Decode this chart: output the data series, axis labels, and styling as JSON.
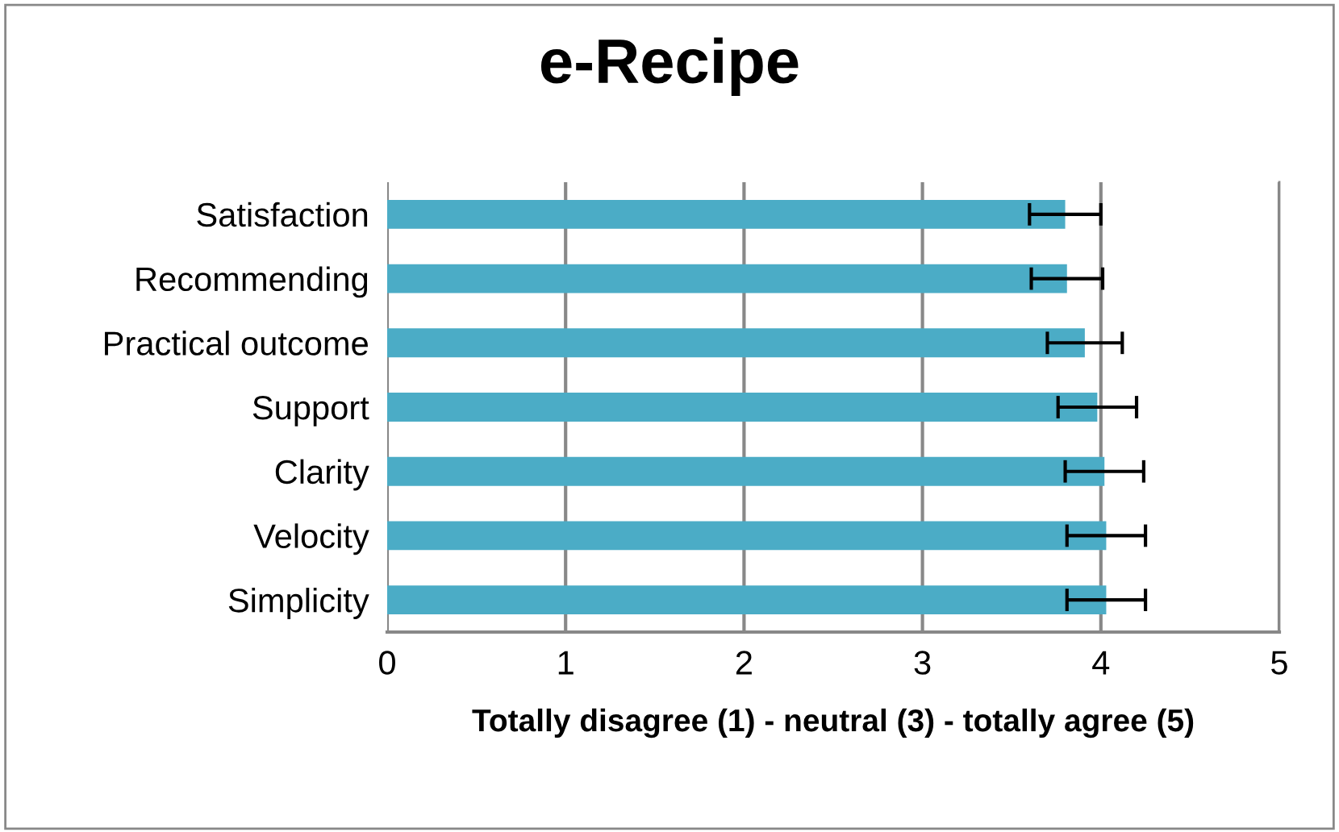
{
  "chart_data": {
    "type": "bar",
    "orientation": "horizontal",
    "title": "e-Recipe",
    "xlabel": "Totally disagree (1) - neutral (3) - totally agree (5)",
    "categories": [
      "Satisfaction",
      "Recommending",
      "Practical outcome",
      "Support",
      "Clarity",
      "Velocity",
      "Simplicity"
    ],
    "values": [
      3.8,
      3.81,
      3.91,
      3.98,
      4.02,
      4.03,
      4.03
    ],
    "errors": [
      0.2,
      0.2,
      0.21,
      0.22,
      0.22,
      0.22,
      0.22
    ],
    "color": "#4bacc6",
    "xlim": [
      0,
      5
    ],
    "xticks": [
      0,
      1,
      2,
      3,
      4,
      5
    ],
    "grid": "x",
    "legend": false
  }
}
